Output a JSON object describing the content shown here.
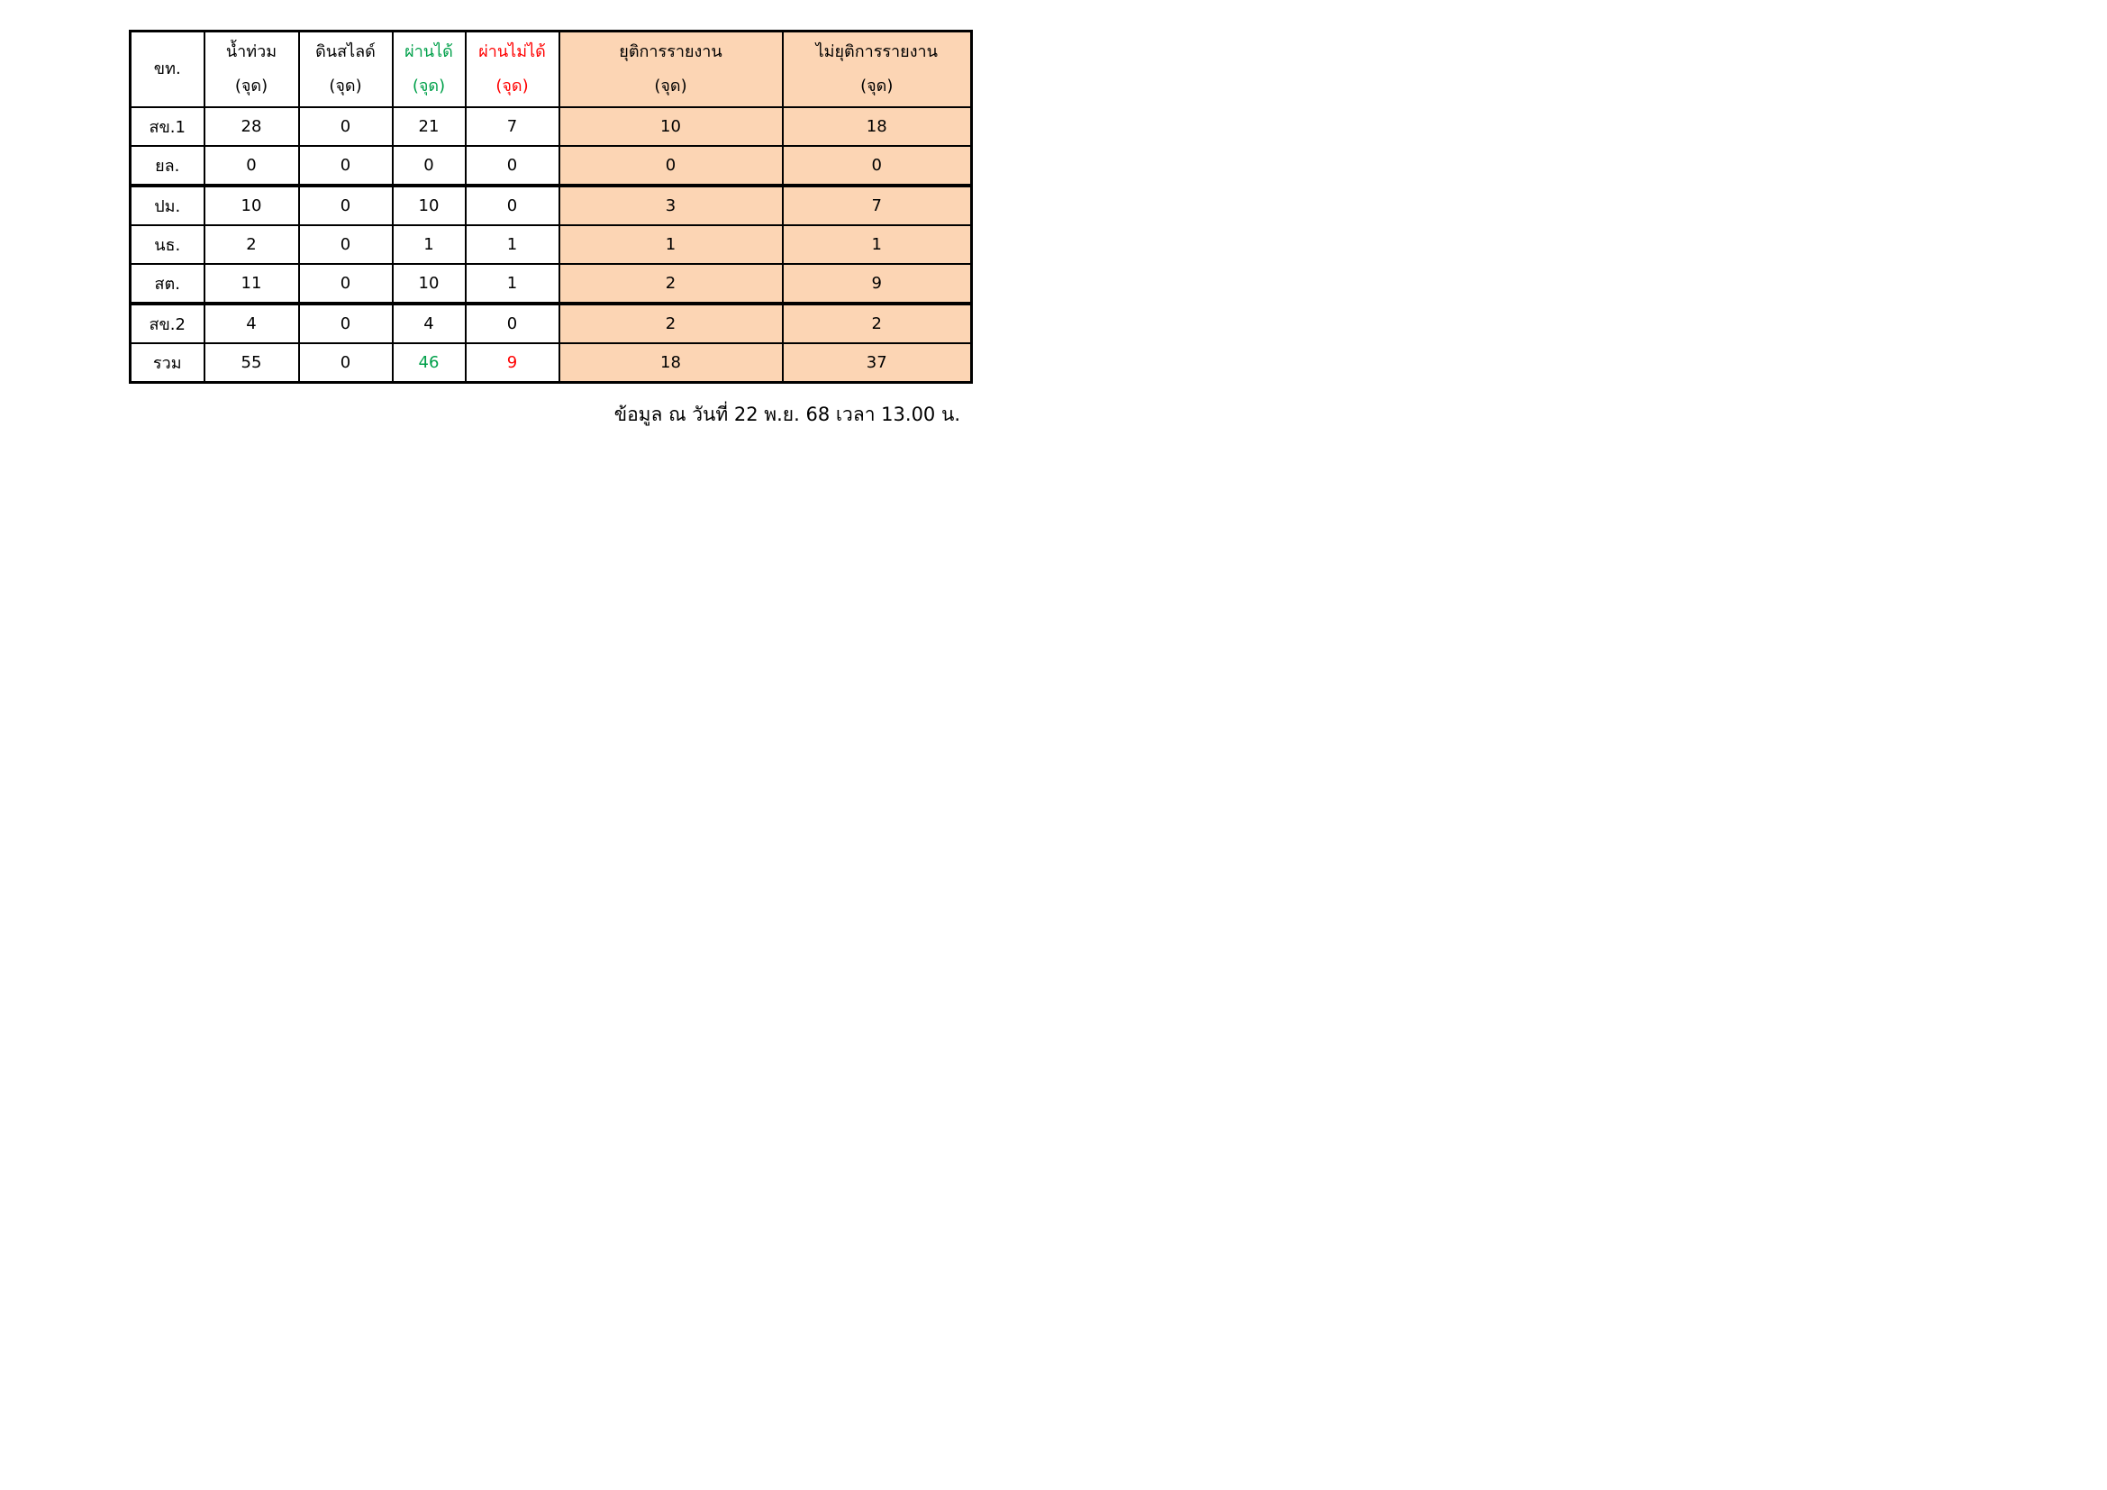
{
  "table": {
    "headers": [
      {
        "line1": "ขท.",
        "line2": ""
      },
      {
        "line1": "น้ำท่วม",
        "line2": "(จุด)"
      },
      {
        "line1": "ดินสไลด์",
        "line2": "(จุด)"
      },
      {
        "line1": "ผ่านได้",
        "line2": "(จุด)"
      },
      {
        "line1": "ผ่านไม่ได้",
        "line2": "(จุด)"
      },
      {
        "line1": "ยุติการรายงาน",
        "line2": "(จุด)"
      },
      {
        "line1": "ไม่ยุติการรายงาน",
        "line2": "(จุด)"
      }
    ],
    "rows": [
      [
        "สข.1",
        "28",
        "0",
        "21",
        "7",
        "10",
        "18"
      ],
      [
        "ยล.",
        "0",
        "0",
        "0",
        "0",
        "0",
        "0"
      ],
      [
        "ปม.",
        "10",
        "0",
        "10",
        "0",
        "3",
        "7"
      ],
      [
        "นธ.",
        "2",
        "0",
        "1",
        "1",
        "1",
        "1"
      ],
      [
        "สต.",
        "11",
        "0",
        "10",
        "1",
        "2",
        "9"
      ],
      [
        "สข.2",
        "4",
        "0",
        "4",
        "0",
        "2",
        "2"
      ],
      [
        "รวม",
        "55",
        "0",
        "46",
        "9",
        "18",
        "37"
      ]
    ]
  },
  "colors": {
    "passable": "#00a04a",
    "impassable": "#ff0000",
    "highlight_columns": "#fcd5b4"
  },
  "footer": "ข้อมูล ณ วันที่ 22 พ.ย. 68 เวลา 13.00 น."
}
